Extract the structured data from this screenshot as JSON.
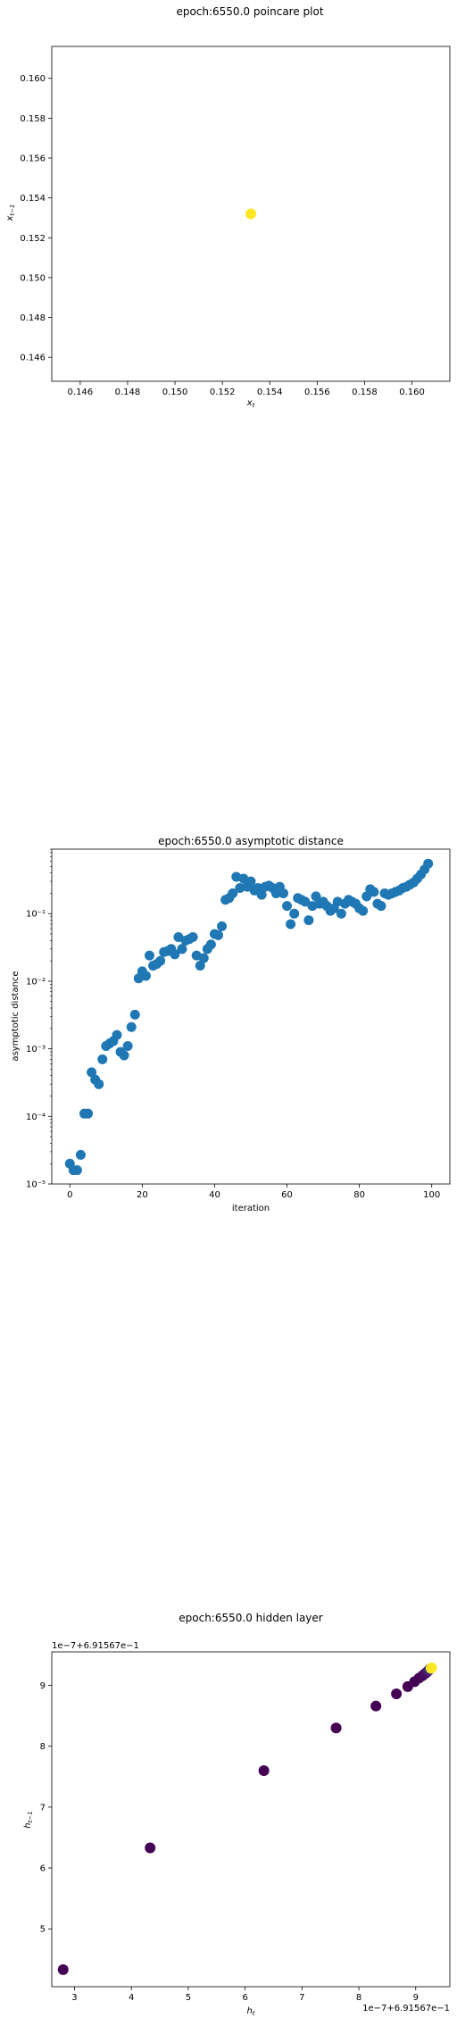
{
  "chart_data": [
    {
      "type": "scatter",
      "title": "epoch:6550.0 poincare plot",
      "xlabel": "x_t",
      "ylabel": "x_t-1",
      "xlim": [
        0.1448,
        0.1616
      ],
      "ylim": [
        0.1448,
        0.1616
      ],
      "xticks": [
        0.146,
        0.148,
        0.15,
        0.152,
        0.154,
        0.156,
        0.158,
        0.16
      ],
      "xtick_labels": [
        "0.146",
        "0.148",
        "0.150",
        "0.152",
        "0.154",
        "0.156",
        "0.158",
        "0.160"
      ],
      "yticks": [
        0.146,
        0.148,
        0.15,
        0.152,
        0.154,
        0.156,
        0.158,
        0.16
      ],
      "ytick_labels": [
        "0.146",
        "0.148",
        "0.150",
        "0.152",
        "0.154",
        "0.156",
        "0.158",
        "0.160"
      ],
      "points": [
        {
          "x": 0.1532,
          "y": 0.1532
        }
      ],
      "color": "#fde725",
      "grid": false
    },
    {
      "type": "scatter",
      "title": "epoch:6550.0 asymptotic distance",
      "xlabel": "iteration",
      "ylabel": "asymptotic distance",
      "yscale": "log",
      "xlim": [
        -5,
        105
      ],
      "ylim": [
        1e-05,
        0.9
      ],
      "xticks": [
        0,
        20,
        40,
        60,
        80,
        100
      ],
      "xtick_labels": [
        "0",
        "20",
        "40",
        "60",
        "80",
        "100"
      ],
      "yticks": [
        1e-05,
        0.0001,
        0.001,
        0.01,
        0.1
      ],
      "ytick_labels": [
        "10⁻⁵",
        "10⁻⁴",
        "10⁻³",
        "10⁻²",
        "10⁻¹"
      ],
      "color": "#1f77b4",
      "grid": false,
      "x": [
        0,
        1,
        2,
        3,
        4,
        5,
        6,
        7,
        8,
        9,
        10,
        11,
        12,
        13,
        14,
        15,
        16,
        17,
        18,
        19,
        20,
        21,
        22,
        23,
        24,
        25,
        26,
        27,
        28,
        29,
        30,
        31,
        32,
        33,
        34,
        35,
        36,
        37,
        38,
        39,
        40,
        41,
        42,
        43,
        44,
        45,
        46,
        47,
        48,
        49,
        50,
        51,
        52,
        53,
        54,
        55,
        56,
        57,
        58,
        59,
        60,
        61,
        62,
        63,
        64,
        65,
        66,
        67,
        68,
        69,
        70,
        71,
        72,
        73,
        74,
        75,
        76,
        77,
        78,
        79,
        80,
        81,
        82,
        83,
        84,
        85,
        86,
        87,
        88,
        89,
        90,
        91,
        92,
        93,
        94,
        95,
        96,
        97,
        98,
        99
      ],
      "y": [
        2e-05,
        1.6e-05,
        1.6e-05,
        2.7e-05,
        0.00011,
        0.00011,
        0.00045,
        0.00035,
        0.0003,
        0.0007,
        0.0011,
        0.0012,
        0.0013,
        0.0016,
        0.0009,
        0.0008,
        0.0011,
        0.0021,
        0.0032,
        0.011,
        0.014,
        0.012,
        0.024,
        0.017,
        0.018,
        0.02,
        0.027,
        0.028,
        0.03,
        0.025,
        0.045,
        0.03,
        0.04,
        0.042,
        0.045,
        0.024,
        0.017,
        0.022,
        0.03,
        0.035,
        0.05,
        0.048,
        0.065,
        0.16,
        0.17,
        0.2,
        0.35,
        0.24,
        0.33,
        0.25,
        0.3,
        0.22,
        0.24,
        0.19,
        0.25,
        0.26,
        0.24,
        0.2,
        0.25,
        0.2,
        0.13,
        0.07,
        0.1,
        0.17,
        0.16,
        0.15,
        0.08,
        0.13,
        0.18,
        0.14,
        0.15,
        0.13,
        0.11,
        0.12,
        0.15,
        0.1,
        0.14,
        0.16,
        0.15,
        0.14,
        0.12,
        0.11,
        0.18,
        0.23,
        0.21,
        0.14,
        0.13,
        0.2,
        0.19,
        0.2,
        0.21,
        0.22,
        0.24,
        0.25,
        0.27,
        0.29,
        0.33,
        0.38,
        0.45,
        0.55
      ]
    },
    {
      "type": "scatter",
      "title": "epoch:6550.0 hidden layer",
      "xlabel": "h_t",
      "ylabel": "h_t-1",
      "offset_label_y": "1e−7+6.91567e−1",
      "offset_label_x": "1e−7+6.91567e−1",
      "xlim": [
        2.6,
        9.6
      ],
      "ylim": [
        4.05,
        9.55
      ],
      "xticks": [
        3,
        4,
        5,
        6,
        7,
        8,
        9
      ],
      "xtick_labels": [
        "3",
        "4",
        "5",
        "6",
        "7",
        "8",
        "9"
      ],
      "yticks": [
        5,
        6,
        7,
        8,
        9
      ],
      "ytick_labels": [
        "5",
        "6",
        "7",
        "8",
        "9"
      ],
      "grid": false,
      "points": [
        {
          "x": 2.8,
          "y": 4.33,
          "color": "#440154"
        },
        {
          "x": 4.33,
          "y": 6.33,
          "color": "#440154"
        },
        {
          "x": 6.33,
          "y": 7.6,
          "color": "#440154"
        },
        {
          "x": 7.6,
          "y": 8.3,
          "color": "#440154"
        },
        {
          "x": 8.3,
          "y": 8.66,
          "color": "#440154"
        },
        {
          "x": 8.66,
          "y": 8.86,
          "color": "#440154"
        },
        {
          "x": 8.86,
          "y": 8.98,
          "color": "#440154"
        },
        {
          "x": 8.98,
          "y": 9.06,
          "color": "#440154"
        },
        {
          "x": 9.06,
          "y": 9.12,
          "color": "#440154"
        },
        {
          "x": 9.12,
          "y": 9.16,
          "color": "#45085b"
        },
        {
          "x": 9.16,
          "y": 9.19,
          "color": "#460c60"
        },
        {
          "x": 9.19,
          "y": 9.21,
          "color": "#471063"
        },
        {
          "x": 9.21,
          "y": 9.23,
          "color": "#481567"
        },
        {
          "x": 9.23,
          "y": 9.25,
          "color": "#482173"
        },
        {
          "x": 9.25,
          "y": 9.27,
          "color": "#433e85"
        },
        {
          "x": 9.27,
          "y": 9.28,
          "color": "#fde725"
        },
        {
          "x": 9.28,
          "y": 9.29,
          "color": "#fde725"
        }
      ]
    }
  ]
}
